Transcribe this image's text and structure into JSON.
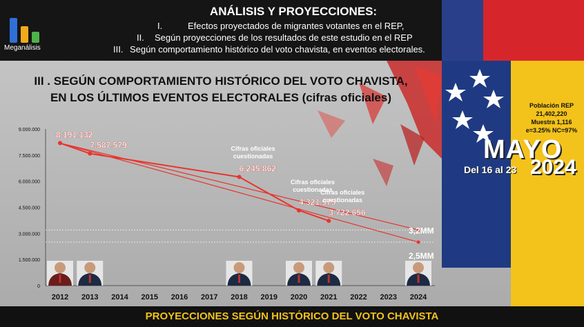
{
  "header": {
    "logo_text": "Meganálisis",
    "title": "ANÁLISIS Y PROYECCIONES:",
    "items": [
      {
        "num": "I.",
        "text": "Efectos proyectados de migrantes votantes en el REP,"
      },
      {
        "num": "II.",
        "text": "Según proyecciones de los resultados de este estudio en el REP"
      },
      {
        "num": "III.",
        "text": "Según comportamiento histórico del voto chavista, en eventos electorales."
      }
    ]
  },
  "section_title": {
    "line1": "III . SEGÚN COMPORTAMIENTO HISTÓRICO DEL VOTO CHAVISTA,",
    "line2": "EN LOS ÚLTIMOS EVENTOS ELECTORALES (cifras oficiales)"
  },
  "stats": {
    "line1": "Población REP",
    "line2": "21,402,220",
    "line3": "Muestra 1,116",
    "line4": "e=3.25%  NC=97%"
  },
  "badge": {
    "month": "MAYO",
    "dates": "Del 16 al 23",
    "year": "2024"
  },
  "footer": "PROYECCIONES SEGÚN HISTÓRICO DEL VOTO CHAVISTA",
  "colors": {
    "line": "#e8342e",
    "label": "#ffffff",
    "note": "#ffffff",
    "footer_text": "#f3c21b"
  },
  "chart_data": {
    "type": "line",
    "x": [
      "2012",
      "2013",
      "2014",
      "2015",
      "2016",
      "2017",
      "2018",
      "2019",
      "2020",
      "2021",
      "2022",
      "2023",
      "2024"
    ],
    "ylim": [
      0,
      9000000
    ],
    "yticks": [
      "0",
      "1.500.000",
      "3.000.000",
      "4.500.000",
      "6.000.000",
      "7.500.000",
      "9.000.000"
    ],
    "ytick_values": [
      0,
      1500000,
      3000000,
      4500000,
      6000000,
      7500000,
      9000000
    ],
    "grid": false,
    "series": [
      {
        "points": [
          {
            "x": "2012",
            "y": 8191132,
            "label": "8.191.132"
          },
          {
            "x": "2013",
            "y": 7587579,
            "label": "7.587.579"
          },
          {
            "x": "2018",
            "y": 6245862,
            "label": "6.245.862",
            "note": "Cifras oficiales cuestionadas"
          },
          {
            "x": "2020",
            "y": 4321975,
            "label": "4.321.975",
            "note": "Cifras oficiales cuestionadas"
          },
          {
            "x": "2021",
            "y": 3722656,
            "label": "3.722.656",
            "note": "Cifras oficiales cuestionadas"
          }
        ]
      }
    ],
    "projections": [
      {
        "label": "3,2MM",
        "value": 3200000,
        "x": "2024"
      },
      {
        "label": "2,5MM",
        "value": 2500000,
        "x": "2024"
      }
    ]
  }
}
